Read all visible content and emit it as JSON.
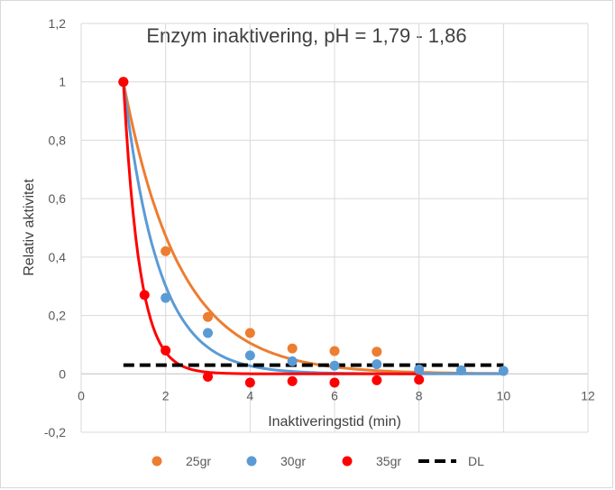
{
  "chart_data": {
    "type": "scatter",
    "title": "Enzym inaktivering, pH = 1,79 - 1,86",
    "xlabel": "Inaktiveringstid (min)",
    "ylabel": "Relativ aktivitet",
    "xlim": [
      0,
      12
    ],
    "ylim": [
      -0.2,
      1.2
    ],
    "x_ticks": [
      0,
      2,
      4,
      6,
      8,
      10,
      12
    ],
    "y_ticks": [
      -0.2,
      0,
      0.2,
      0.4,
      0.6,
      0.8,
      1,
      1.2
    ],
    "x_tick_labels": [
      "0",
      "2",
      "4",
      "6",
      "8",
      "10",
      "12"
    ],
    "y_tick_labels": [
      "-0,2",
      "0",
      "0,2",
      "0,4",
      "0,6",
      "0,8",
      "1",
      "1,2"
    ],
    "grid": true,
    "legend_position": "bottom",
    "series": [
      {
        "name": "25gr",
        "color": "#ED7D31",
        "points": [
          [
            1,
            1.0
          ],
          [
            2,
            0.42
          ],
          [
            3,
            0.195
          ],
          [
            4,
            0.14
          ],
          [
            5,
            0.087
          ],
          [
            6,
            0.078
          ],
          [
            7,
            0.076
          ]
        ],
        "fit": {
          "type": "exponential-decay",
          "k": 0.75,
          "x_start": 1,
          "x_end": 10
        }
      },
      {
        "name": "30gr",
        "color": "#5B9BD5",
        "points": [
          [
            1,
            1.0
          ],
          [
            2,
            0.26
          ],
          [
            3,
            0.14
          ],
          [
            4,
            0.063
          ],
          [
            5,
            0.043
          ],
          [
            6,
            0.028
          ],
          [
            7,
            0.033
          ],
          [
            8,
            0.015
          ],
          [
            9,
            0.012
          ],
          [
            10,
            0.01
          ]
        ],
        "fit": {
          "type": "exponential-decay",
          "k": 1.2,
          "x_start": 1,
          "x_end": 10
        }
      },
      {
        "name": "35gr",
        "color": "#FF0000",
        "points": [
          [
            1,
            1.0
          ],
          [
            1.5,
            0.27
          ],
          [
            2,
            0.08
          ],
          [
            3,
            -0.01
          ],
          [
            4,
            -0.03
          ],
          [
            5,
            -0.025
          ],
          [
            6,
            -0.03
          ],
          [
            7,
            -0.022
          ],
          [
            8,
            -0.02
          ]
        ],
        "fit": {
          "type": "exponential-decay",
          "k": 2.6,
          "x_start": 1,
          "x_end": 8
        }
      }
    ],
    "reference_line": {
      "name": "DL",
      "color": "#000000",
      "style": "dashed",
      "y": 0.03,
      "x_start": 1,
      "x_end": 10
    }
  }
}
